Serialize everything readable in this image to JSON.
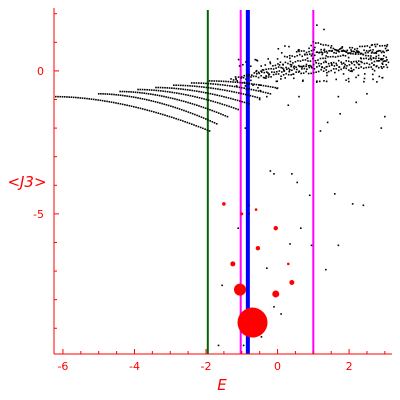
{
  "chart_data": {
    "type": "scatter",
    "title": "",
    "xlabel": "E",
    "ylabel": "<J3>",
    "xlim": [
      -6.25,
      3.2
    ],
    "ylim": [
      -9.9,
      2.2
    ],
    "x_ticks": [
      {
        "value": -6,
        "label": "-6"
      },
      {
        "value": -4,
        "label": "-4"
      },
      {
        "value": -2,
        "label": "-2"
      },
      {
        "value": 0,
        "label": "0"
      },
      {
        "value": 2,
        "label": "2"
      }
    ],
    "y_ticks": [
      {
        "value": 0,
        "label": "0"
      },
      {
        "value": -5,
        "label": "-5"
      }
    ],
    "grid": false,
    "colors": {
      "axes": "#ff0000",
      "points": "#000000",
      "bubbles": "#ff0000",
      "line_green": "#006400",
      "line_magenta": "#ff00ff",
      "line_blue": "#0000ff"
    },
    "vertical_lines": [
      {
        "x": -1.95,
        "color": "#006400",
        "width": 2
      },
      {
        "x": -1.03,
        "color": "#ff00ff",
        "width": 2
      },
      {
        "x": -0.83,
        "color": "#0000ff",
        "width": 4
      },
      {
        "x": 1.0,
        "color": "#ff00ff",
        "width": 2
      }
    ],
    "branches": [
      {
        "x_start": -6.2,
        "x_end": -1.9,
        "y_start": -0.9,
        "y_end": -2.1,
        "n": 70
      },
      {
        "x_start": -5.0,
        "x_end": -1.7,
        "y_start": -0.8,
        "y_end": -1.85,
        "n": 55
      },
      {
        "x_start": -4.4,
        "x_end": -1.4,
        "y_start": -0.72,
        "y_end": -1.6,
        "n": 50
      },
      {
        "x_start": -3.9,
        "x_end": -1.1,
        "y_start": -0.65,
        "y_end": -1.35,
        "n": 45
      },
      {
        "x_start": -3.4,
        "x_end": -0.8,
        "y_start": -0.58,
        "y_end": -1.15,
        "n": 42
      },
      {
        "x_start": -2.9,
        "x_end": -0.5,
        "y_start": -0.5,
        "y_end": -0.95,
        "n": 38
      },
      {
        "x_start": -2.4,
        "x_end": -0.2,
        "y_start": -0.42,
        "y_end": -0.8,
        "n": 34
      },
      {
        "x_start": -1.9,
        "x_end": 0.0,
        "y_start": -0.35,
        "y_end": -0.6,
        "n": 30
      }
    ],
    "band": [
      {
        "x_start": -1.3,
        "x_end": 3.1,
        "y_start": -0.3,
        "y_end": 0.2
      },
      {
        "x_start": -1.0,
        "x_end": 3.1,
        "y_start": -0.15,
        "y_end": 0.35
      },
      {
        "x_start": -0.6,
        "x_end": 3.1,
        "y_start": 0.0,
        "y_end": 0.5
      },
      {
        "x_start": -0.2,
        "x_end": 3.1,
        "y_start": 0.2,
        "y_end": 0.75
      },
      {
        "x_start": 0.2,
        "x_end": 3.1,
        "y_start": 0.45,
        "y_end": 0.95
      },
      {
        "x_start": 0.6,
        "x_end": 3.1,
        "y_start": 0.7,
        "y_end": 0.65
      },
      {
        "x_start": 1.0,
        "x_end": 3.1,
        "y_start": 1.0,
        "y_end": 0.3
      }
    ],
    "scatter_points": [
      [
        1.1,
        1.6
      ],
      [
        1.3,
        1.45
      ],
      [
        1.2,
        -2.1
      ],
      [
        1.4,
        -1.8
      ],
      [
        2.9,
        -2.0
      ],
      [
        3.0,
        -1.6
      ],
      [
        1.75,
        -1.5
      ],
      [
        2.2,
        -1.1
      ],
      [
        -0.5,
        -1.0
      ],
      [
        -0.3,
        -0.9
      ],
      [
        0.3,
        -1.2
      ],
      [
        0.6,
        -0.9
      ],
      [
        1.7,
        -0.9
      ],
      [
        2.5,
        -0.8
      ],
      [
        -0.9,
        -2.0
      ],
      [
        -0.2,
        -3.5
      ],
      [
        -0.1,
        -3.6
      ],
      [
        0.4,
        -3.6
      ],
      [
        0.55,
        -3.9
      ],
      [
        1.6,
        -4.3
      ],
      [
        0.9,
        -4.35
      ],
      [
        2.1,
        -4.65
      ],
      [
        2.4,
        -4.7
      ],
      [
        -0.8,
        -4.7
      ],
      [
        0.65,
        -5.5
      ],
      [
        0.35,
        -6.05
      ],
      [
        1.7,
        -6.1
      ],
      [
        0.95,
        -6.1
      ],
      [
        1.35,
        -6.95
      ],
      [
        -1.1,
        -5.5
      ],
      [
        -0.3,
        -6.9
      ],
      [
        -0.1,
        -8.25
      ],
      [
        0.1,
        -8.5
      ],
      [
        -0.45,
        -9.3
      ],
      [
        -0.95,
        -9.6
      ],
      [
        -1.55,
        -7.5
      ],
      [
        -1.65,
        -9.6
      ],
      [
        -0.8,
        -5.0
      ]
    ],
    "bubbles": [
      {
        "x": -0.7,
        "y": -8.8,
        "size": 15
      },
      {
        "x": -1.05,
        "y": -7.65,
        "size": 6
      },
      {
        "x": -0.05,
        "y": -7.8,
        "size": 3.5
      },
      {
        "x": 0.4,
        "y": -7.4,
        "size": 2.5
      },
      {
        "x": -1.25,
        "y": -6.75,
        "size": 2.5
      },
      {
        "x": -0.55,
        "y": -6.2,
        "size": 2.2
      },
      {
        "x": -0.05,
        "y": -5.5,
        "size": 2.2
      },
      {
        "x": -1.5,
        "y": -4.65,
        "size": 1.8
      },
      {
        "x": -1.0,
        "y": -5.0,
        "size": 1.5
      },
      {
        "x": -0.6,
        "y": -4.85,
        "size": 1.3
      },
      {
        "x": 0.3,
        "y": -6.75,
        "size": 1.3
      }
    ]
  }
}
